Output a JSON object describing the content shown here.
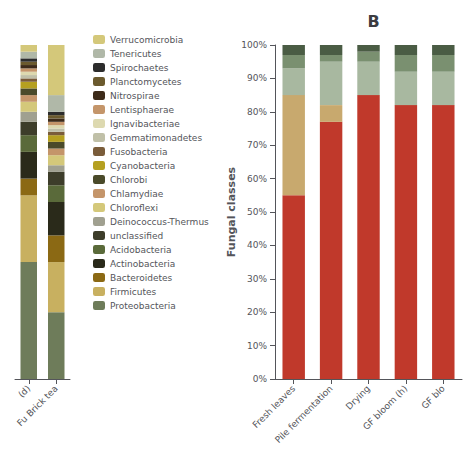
{
  "chart_data": [
    {
      "type": "bar",
      "stacked": true,
      "grid": false,
      "legend": "right",
      "tick_labels": "x",
      "categories": [
        "(d)",
        "Fu Brick tea"
      ],
      "ylim": [
        0,
        100
      ],
      "series": [
        {
          "name": "Proteobacteria",
          "color": "#6e7c5a",
          "values": [
            35,
            20
          ]
        },
        {
          "name": "Firmicutes",
          "color": "#c8b060",
          "values": [
            20,
            15
          ]
        },
        {
          "name": "Bacteroidetes",
          "color": "#8b6914",
          "values": [
            5,
            8
          ]
        },
        {
          "name": "Actinobacteria",
          "color": "#2a2a1a",
          "values": [
            8,
            10
          ]
        },
        {
          "name": "Acidobacteria",
          "color": "#5a6a3a",
          "values": [
            5,
            5
          ]
        },
        {
          "name": "unclassified",
          "color": "#3d3d2a",
          "values": [
            4,
            4
          ]
        },
        {
          "name": "Deinococcus-Thermus",
          "color": "#a0a090",
          "values": [
            3,
            2
          ]
        },
        {
          "name": "Chloroflexi",
          "color": "#d4c87a",
          "values": [
            3,
            3
          ]
        },
        {
          "name": "Chlamydiae",
          "color": "#c4956a",
          "values": [
            2,
            2
          ]
        },
        {
          "name": "Chlorobi",
          "color": "#4a4a2a",
          "values": [
            2,
            2
          ]
        },
        {
          "name": "Cyanobacteria",
          "color": "#b5a020",
          "values": [
            2,
            2
          ]
        },
        {
          "name": "Fusobacteria",
          "color": "#7a5c3a",
          "values": [
            1,
            1
          ]
        },
        {
          "name": "Gemmatimonadetes",
          "color": "#c0c0a8",
          "values": [
            1,
            1
          ]
        },
        {
          "name": "Ignavibacteriae",
          "color": "#ddd9b0",
          "values": [
            1,
            1
          ]
        },
        {
          "name": "Lentisphaerae",
          "color": "#c4956a",
          "values": [
            1,
            1
          ]
        },
        {
          "name": "Nitrospirae",
          "color": "#3d2b1a",
          "values": [
            1,
            1
          ]
        },
        {
          "name": "Planctomycetes",
          "color": "#6b5a2e",
          "values": [
            1,
            1
          ]
        },
        {
          "name": "Spirochaetes",
          "color": "#2c2c2c",
          "values": [
            1,
            1
          ]
        },
        {
          "name": "Tenericutes",
          "color": "#b0b8a8",
          "values": [
            2,
            5
          ]
        },
        {
          "name": "Verrucomicrobia",
          "color": "#d4c87a",
          "values": [
            2,
            15
          ]
        }
      ]
    },
    {
      "type": "bar",
      "stacked": true,
      "grid": false,
      "title": "B",
      "ylabel": "Fungal classes",
      "categories": [
        "Fresh leaves",
        "Pile fermentation",
        "Drying",
        "GF bloom (h)",
        "GF blo"
      ],
      "ylim": [
        0,
        100
      ],
      "yticks": [
        {
          "value": 0,
          "label": "0%"
        },
        {
          "value": 10,
          "label": "10%"
        },
        {
          "value": 20,
          "label": "20%"
        },
        {
          "value": 30,
          "label": "30%"
        },
        {
          "value": 40,
          "label": "40%"
        },
        {
          "value": 50,
          "label": "50%"
        },
        {
          "value": 60,
          "label": "60%"
        },
        {
          "value": 70,
          "label": "70%"
        },
        {
          "value": 80,
          "label": "80%"
        },
        {
          "value": 90,
          "label": "90%"
        },
        {
          "value": 100,
          "label": "100%"
        }
      ],
      "series": [
        {
          "color": "#c0392b",
          "values": [
            55,
            77,
            85,
            82,
            82
          ]
        },
        {
          "color": "#c8a96e",
          "values": [
            30,
            5,
            0,
            0,
            0
          ]
        },
        {
          "color": "#a8b8a0",
          "values": [
            8,
            13,
            10,
            10,
            10
          ]
        },
        {
          "color": "#7a9070",
          "values": [
            4,
            2,
            3,
            5,
            5
          ]
        },
        {
          "color": "#4a5c44",
          "values": [
            3,
            3,
            2,
            3,
            3
          ]
        }
      ]
    }
  ]
}
